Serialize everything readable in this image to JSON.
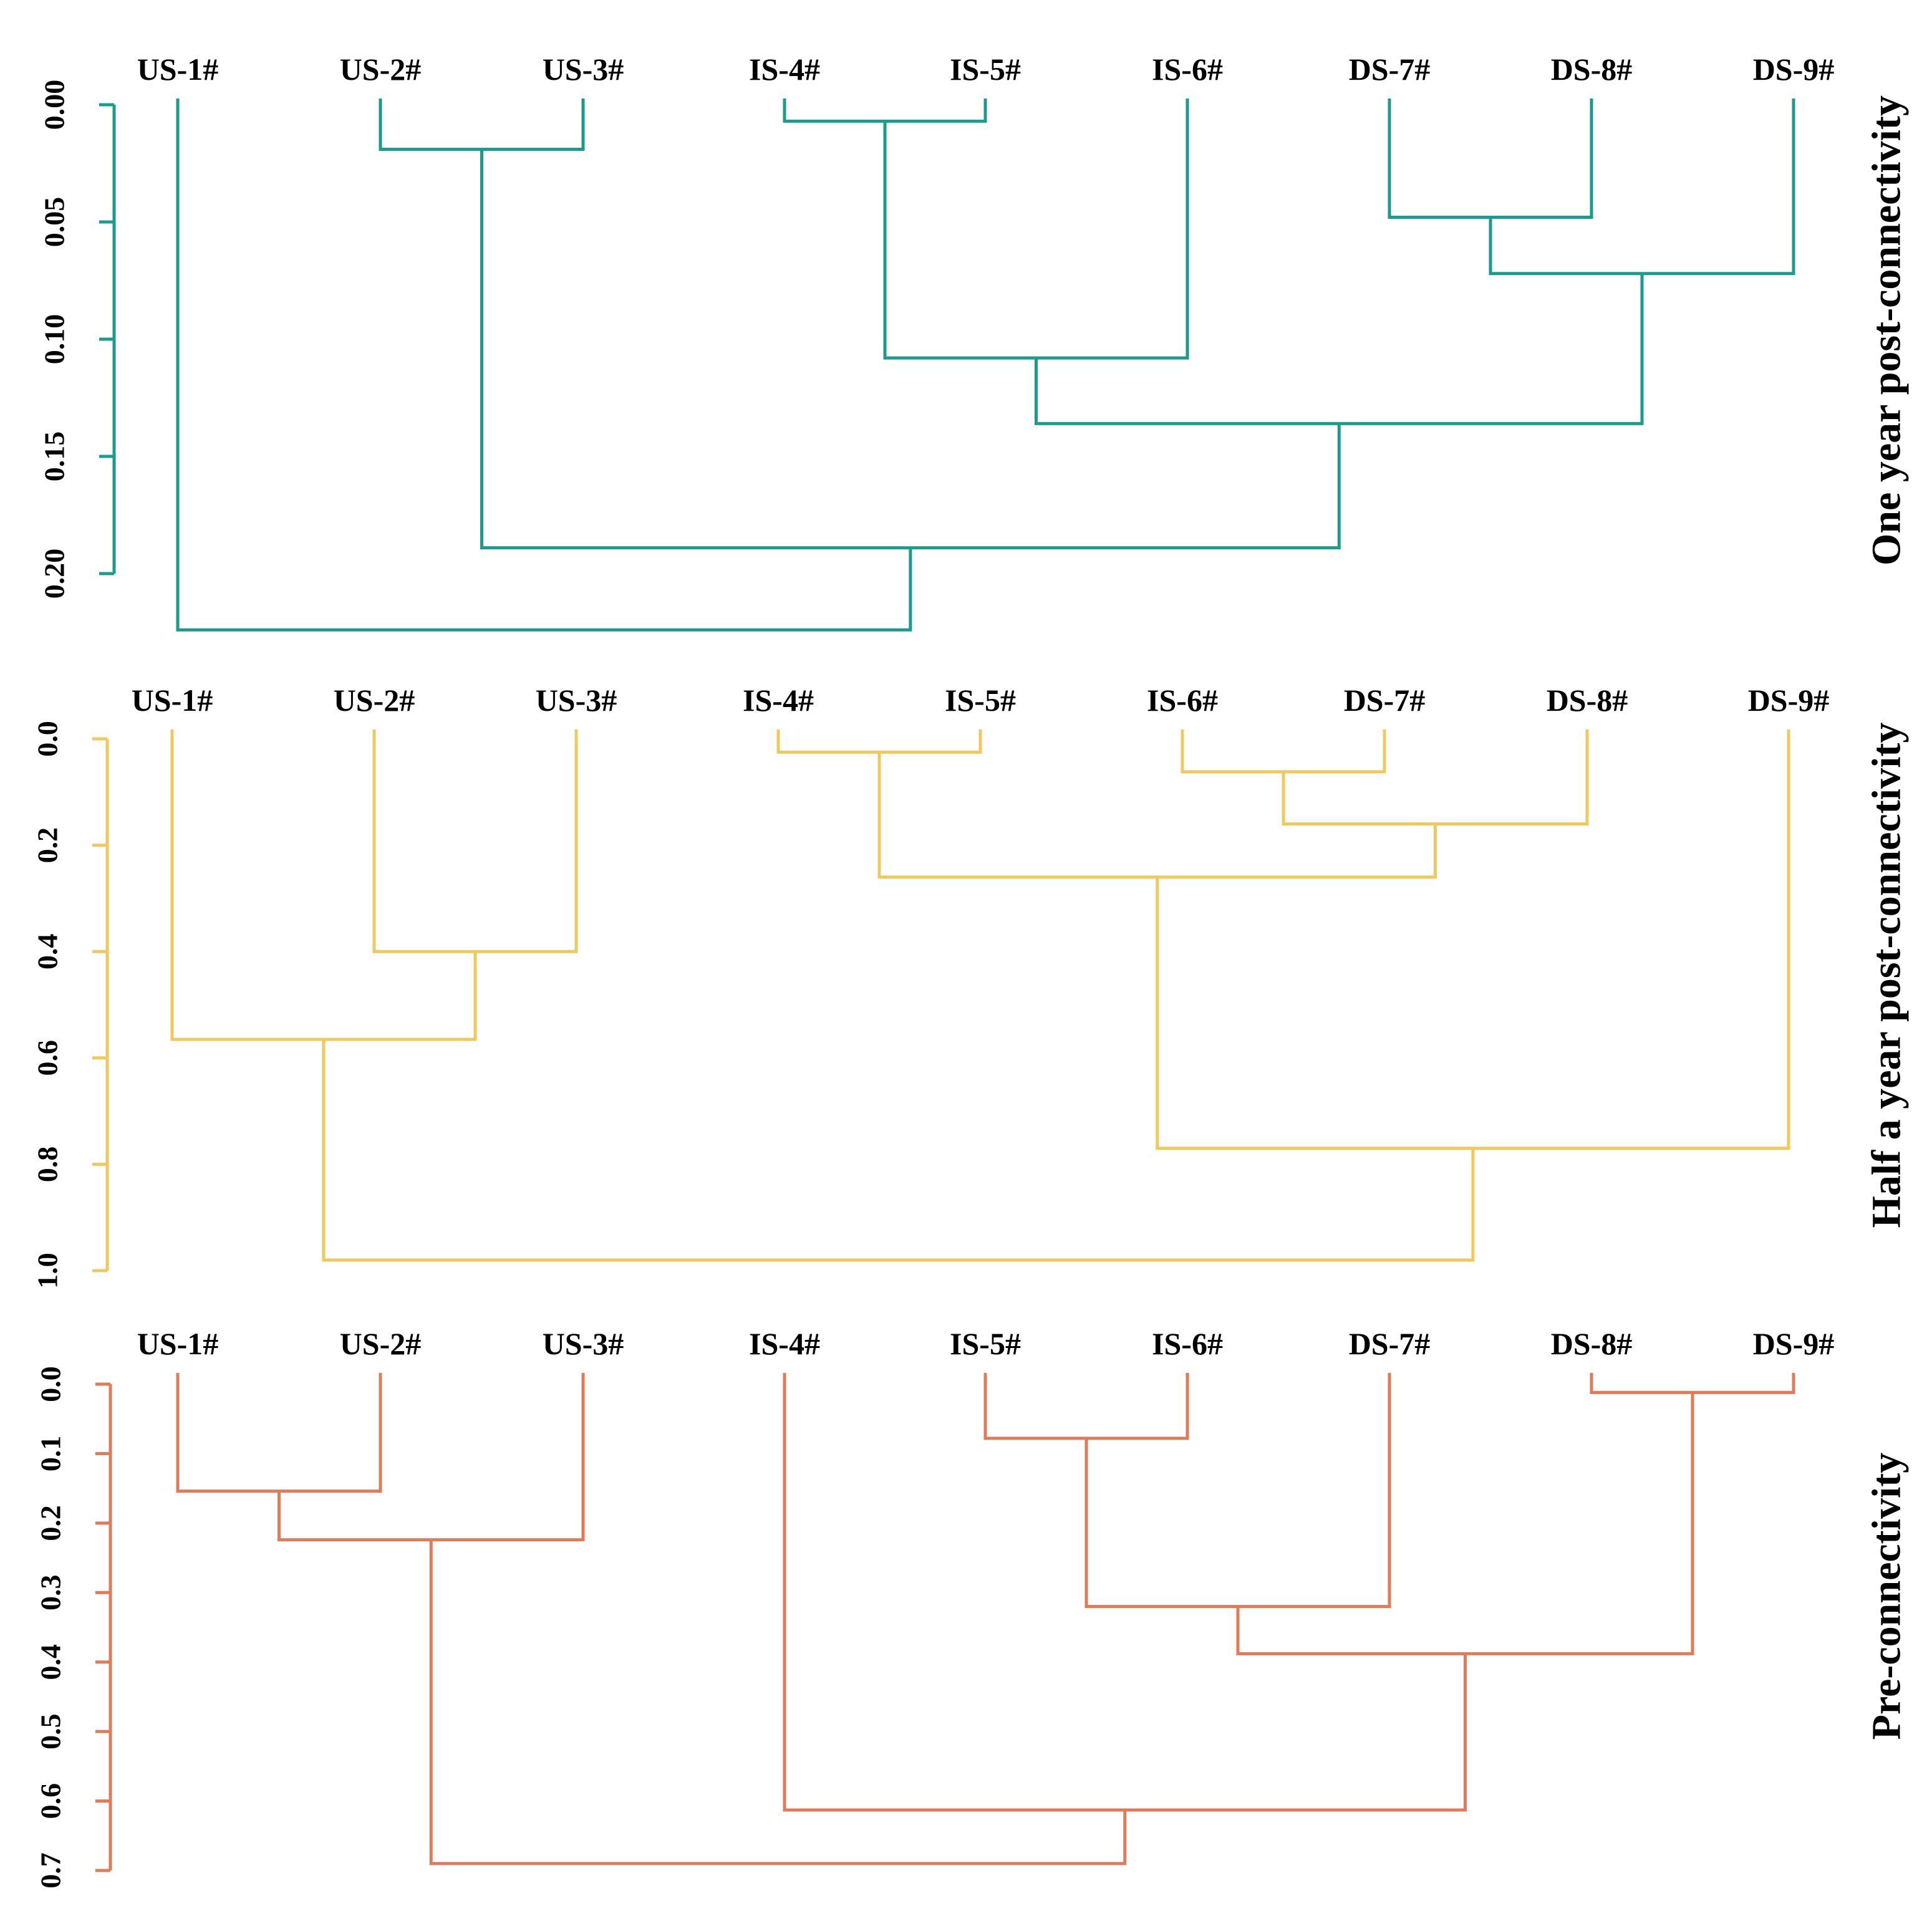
{
  "chart_data": [
    {
      "type": "dendrogram",
      "title": "One year post-connectivity",
      "color": "#1a9c8c",
      "leaves": [
        "US-1#",
        "US-2#",
        "US-3#",
        "IS-4#",
        "IS-5#",
        "IS-6#",
        "DS-7#",
        "DS-8#",
        "DS-9#"
      ],
      "ylim": [
        0,
        0.2
      ],
      "ticks": [
        "0.00",
        "0.05",
        "0.10",
        "0.15",
        "0.20"
      ],
      "merges": [
        {
          "left": "IS-4#",
          "right": "IS-5#",
          "height": 0.007
        },
        {
          "left": "US-2#",
          "right": "US-3#",
          "height": 0.019
        },
        {
          "left": "DS-7#",
          "right": "DS-8#",
          "height": 0.048
        },
        {
          "left": "C3",
          "right": "DS-9#",
          "height": 0.072
        },
        {
          "left": "C1",
          "right": "IS-6#",
          "height": 0.108
        },
        {
          "left": "C5",
          "right": "C4",
          "height": 0.136
        },
        {
          "left": "C2",
          "right": "C6",
          "height": 0.189
        },
        {
          "left": "US-1#",
          "right": "C7",
          "height": 0.224
        }
      ]
    },
    {
      "type": "dendrogram",
      "title": "Half a year post-connectivity",
      "color": "#f0c95c",
      "leaves": [
        "US-1#",
        "US-2#",
        "US-3#",
        "IS-4#",
        "IS-5#",
        "IS-6#",
        "DS-7#",
        "DS-8#",
        "DS-9#"
      ],
      "ylim": [
        0,
        1.0
      ],
      "ticks": [
        "0.0",
        "0.2",
        "0.4",
        "0.6",
        "0.8",
        "1.0"
      ],
      "merges": [
        {
          "left": "IS-4#",
          "right": "IS-5#",
          "height": 0.025
        },
        {
          "left": "IS-6#",
          "right": "DS-7#",
          "height": 0.062
        },
        {
          "left": "C2",
          "right": "DS-8#",
          "height": 0.16
        },
        {
          "left": "C1",
          "right": "C3",
          "height": 0.26
        },
        {
          "left": "US-2#",
          "right": "US-3#",
          "height": 0.4
        },
        {
          "left": "US-1#",
          "right": "C5",
          "height": 0.565
        },
        {
          "left": "C4",
          "right": "DS-9#",
          "height": 0.77
        },
        {
          "left": "C6",
          "right": "C7",
          "height": 0.98
        }
      ]
    },
    {
      "type": "dendrogram",
      "title": "Pre-connectivity",
      "color": "#e07b5a",
      "leaves": [
        "US-1#",
        "US-2#",
        "US-3#",
        "IS-4#",
        "IS-5#",
        "IS-6#",
        "DS-7#",
        "DS-8#",
        "DS-9#"
      ],
      "ylim": [
        0,
        0.7
      ],
      "ticks": [
        "0.0",
        "0.1",
        "0.2",
        "0.3",
        "0.4",
        "0.5",
        "0.6",
        "0.7"
      ],
      "merges": [
        {
          "left": "DS-8#",
          "right": "DS-9#",
          "height": 0.012
        },
        {
          "left": "IS-5#",
          "right": "IS-6#",
          "height": 0.078
        },
        {
          "left": "US-1#",
          "right": "US-2#",
          "height": 0.154
        },
        {
          "left": "C3",
          "right": "US-3#",
          "height": 0.224
        },
        {
          "left": "C2",
          "right": "DS-7#",
          "height": 0.32
        },
        {
          "left": "C5",
          "right": "C1",
          "height": 0.388
        },
        {
          "left": "IS-4#",
          "right": "C6",
          "height": 0.613
        },
        {
          "left": "C4",
          "right": "C7",
          "height": 0.69
        }
      ]
    }
  ]
}
